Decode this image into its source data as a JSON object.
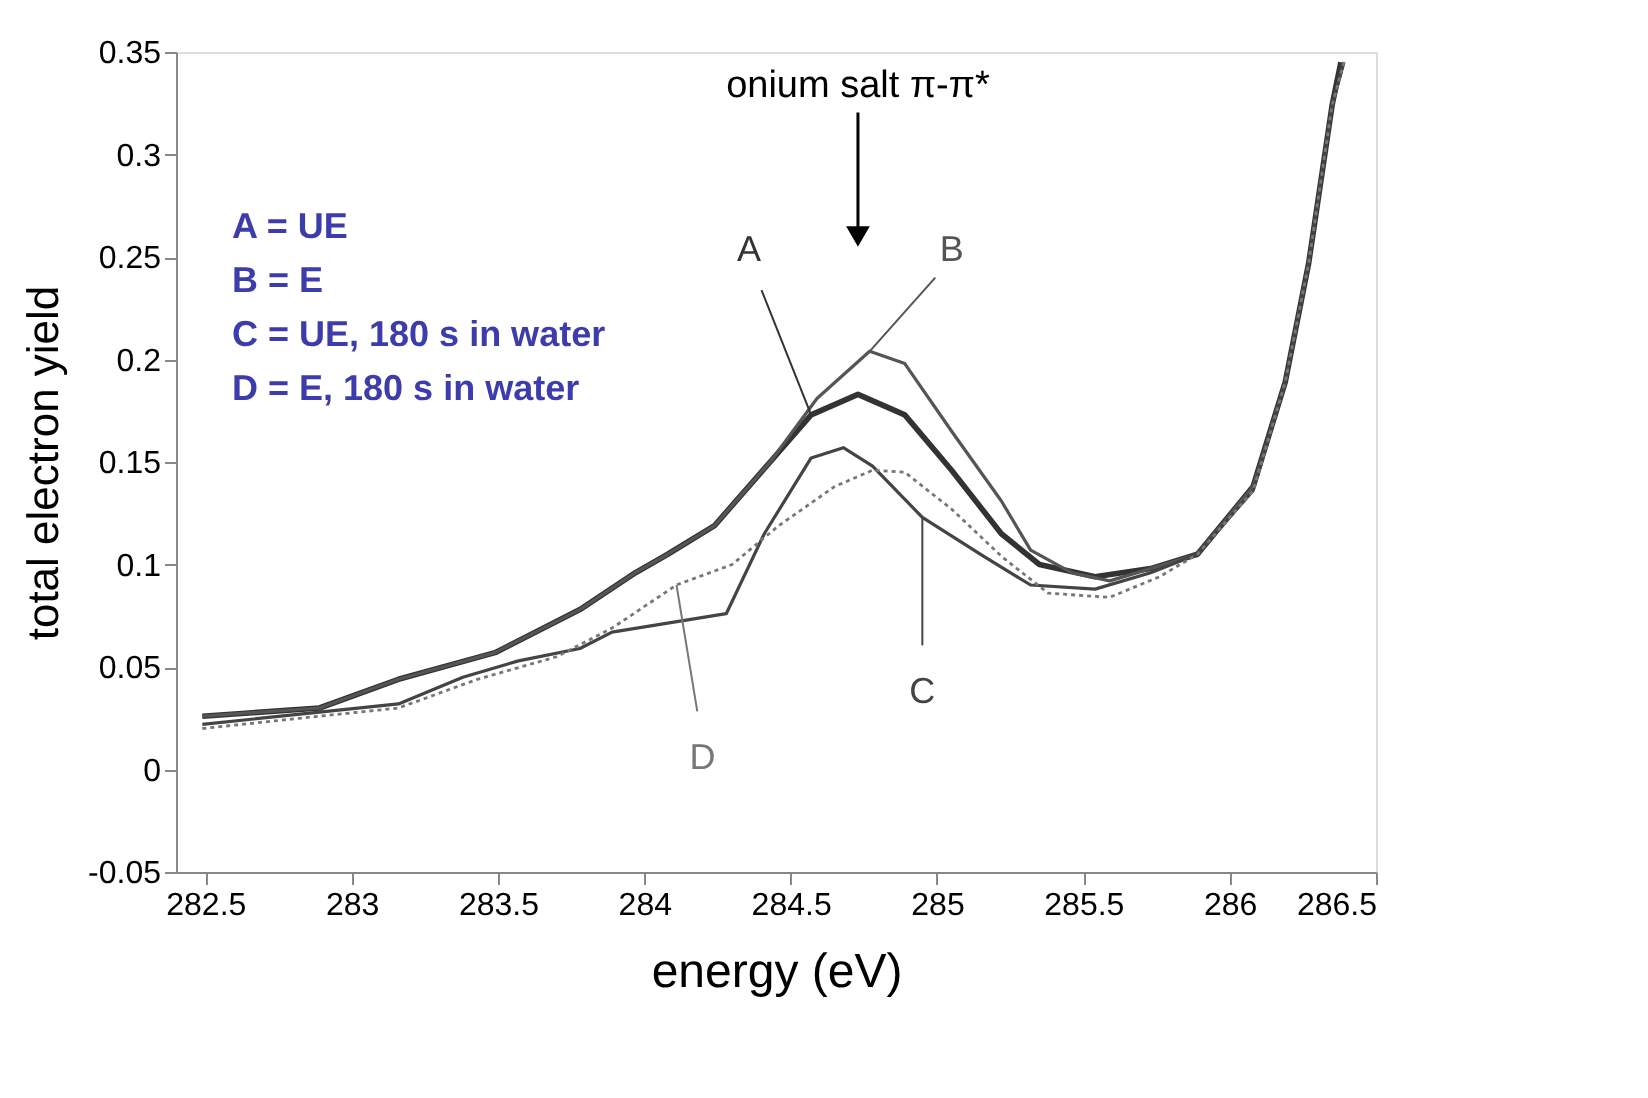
{
  "chart_data": {
    "type": "line",
    "xlabel": "energy (eV)",
    "ylabel": "total electron yield",
    "xlim": [
      282.4,
      286.5
    ],
    "xticks": [
      282.5,
      283,
      283.5,
      284,
      284.5,
      285,
      285.5,
      286,
      286.5
    ],
    "ylim": [
      -0.05,
      0.35
    ],
    "yticks": [
      -0.05,
      0,
      0.05,
      0.1,
      0.15,
      0.2,
      0.25,
      0.3,
      0.35
    ],
    "grid": false,
    "marker": "none",
    "series": [
      {
        "name": "A",
        "color": "#333333",
        "line_style": "solid",
        "x": [
          282.49,
          282.89,
          283.16,
          283.49,
          283.78,
          283.97,
          284.08,
          284.24,
          284.43,
          284.57,
          284.73,
          284.89,
          285.05,
          285.22,
          285.35,
          285.54,
          285.73,
          285.89,
          286.08,
          286.19,
          286.27,
          286.35,
          286.38
        ],
        "values": [
          0.026,
          0.03,
          0.044,
          0.057,
          0.078,
          0.096,
          0.105,
          0.119,
          0.15,
          0.173,
          0.183,
          0.173,
          0.146,
          0.115,
          0.1,
          0.094,
          0.098,
          0.105,
          0.138,
          0.189,
          0.247,
          0.324,
          0.345
        ]
      },
      {
        "name": "B",
        "color": "#555555",
        "line_style": "solid",
        "x": [
          282.49,
          282.89,
          283.16,
          283.49,
          283.78,
          283.97,
          284.08,
          284.24,
          284.43,
          284.59,
          284.77,
          284.89,
          285.05,
          285.22,
          285.32,
          285.46,
          285.59,
          285.73,
          285.89,
          286.08,
          286.19,
          286.27,
          286.35,
          286.39
        ],
        "values": [
          0.026,
          0.03,
          0.044,
          0.057,
          0.078,
          0.096,
          0.105,
          0.119,
          0.15,
          0.181,
          0.204,
          0.198,
          0.165,
          0.131,
          0.107,
          0.096,
          0.092,
          0.098,
          0.105,
          0.138,
          0.189,
          0.247,
          0.324,
          0.345
        ]
      },
      {
        "name": "C",
        "color": "#444444",
        "line_style": "solid",
        "x": [
          282.49,
          282.89,
          283.16,
          283.38,
          283.57,
          283.78,
          283.89,
          284.28,
          284.41,
          284.57,
          284.68,
          284.78,
          284.95,
          285.16,
          285.32,
          285.54,
          285.73,
          285.89,
          286.08,
          286.19,
          286.27,
          286.35,
          286.39
        ],
        "values": [
          0.022,
          0.028,
          0.032,
          0.045,
          0.053,
          0.059,
          0.067,
          0.076,
          0.115,
          0.152,
          0.157,
          0.148,
          0.123,
          0.104,
          0.09,
          0.088,
          0.096,
          0.105,
          0.136,
          0.189,
          0.247,
          0.324,
          0.345
        ]
      },
      {
        "name": "D",
        "color": "#777777",
        "line_style": "dotted",
        "x": [
          282.49,
          282.89,
          283.16,
          283.43,
          283.7,
          283.89,
          284.11,
          284.3,
          284.46,
          284.65,
          284.78,
          284.89,
          285.05,
          285.22,
          285.38,
          285.59,
          285.76,
          285.89,
          286.08,
          286.19,
          286.27,
          286.35,
          286.39
        ],
        "values": [
          0.02,
          0.026,
          0.03,
          0.044,
          0.055,
          0.069,
          0.09,
          0.1,
          0.119,
          0.138,
          0.146,
          0.145,
          0.127,
          0.104,
          0.086,
          0.084,
          0.094,
          0.105,
          0.136,
          0.189,
          0.247,
          0.324,
          0.345
        ]
      }
    ],
    "annotations": [
      {
        "text": "onium salt π-π*",
        "x": 284.73,
        "y": 0.26
      },
      "A = UE",
      "B = E",
      "C = UE, 180 s in water",
      "D = E, 180 s in water"
    ]
  }
}
